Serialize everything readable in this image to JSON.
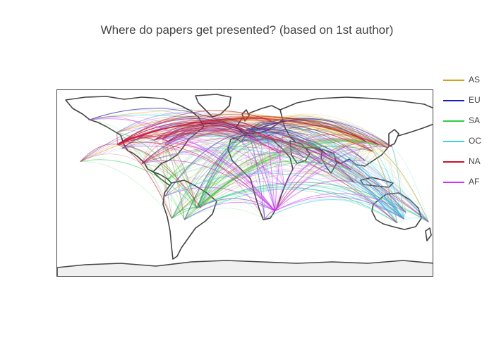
{
  "title": "Where do papers get presented? (based on 1st author)",
  "chart_data": {
    "type": "map",
    "projection": "equirectangular",
    "lon_range": [
      -180,
      180
    ],
    "lat_range": [
      -90,
      90
    ],
    "land_color": "#ffffff",
    "coastline_color": "#444444",
    "legend_placement": "right",
    "series": [
      {
        "name": "AS",
        "color": "#d4a017",
        "origins": [
          [
            116,
            40
          ],
          [
            139.7,
            35.7
          ],
          [
            121,
            31
          ],
          [
            127,
            37.5
          ],
          [
            77,
            28.6
          ],
          [
            103.8,
            1.3
          ]
        ]
      },
      {
        "name": "EU",
        "color": "#1f1fb0",
        "origins": [
          [
            2.3,
            48.9
          ],
          [
            -0.1,
            51.5
          ],
          [
            13.4,
            52.5
          ],
          [
            12.5,
            41.9
          ],
          [
            -3.7,
            40.4
          ],
          [
            4.9,
            52.4
          ]
        ]
      },
      {
        "name": "SA",
        "color": "#2ecc40",
        "origins": [
          [
            -46.6,
            -23.5
          ],
          [
            -58.4,
            -34.6
          ],
          [
            -70.6,
            -33.4
          ],
          [
            -74,
            4.6
          ]
        ]
      },
      {
        "name": "OC",
        "color": "#40d0e0",
        "origins": [
          [
            151.2,
            -33.9
          ],
          [
            144.9,
            -37.8
          ],
          [
            174.8,
            -36.8
          ]
        ]
      },
      {
        "name": "NA",
        "color": "#c8102e",
        "origins": [
          [
            -122.4,
            37.8
          ],
          [
            -74,
            40.7
          ],
          [
            -87.6,
            41.9
          ],
          [
            -79.4,
            43.7
          ],
          [
            -99.1,
            19.4
          ]
        ]
      },
      {
        "name": "AF",
        "color": "#cc33ff",
        "origins": [
          [
            28,
            -26.2
          ],
          [
            31.2,
            30
          ],
          [
            3.4,
            6.5
          ],
          [
            36.8,
            -1.3
          ]
        ]
      }
    ],
    "destinations": [
      [
        -122.4,
        37.8
      ],
      [
        -118.2,
        34
      ],
      [
        -73.9,
        40.7
      ],
      [
        -77,
        38.9
      ],
      [
        -87.6,
        41.9
      ],
      [
        -79.4,
        43.7
      ],
      [
        -123.1,
        49.3
      ],
      [
        -99.1,
        19.4
      ],
      [
        -0.1,
        51.5
      ],
      [
        2.3,
        48.9
      ],
      [
        13.4,
        52.5
      ],
      [
        -3.7,
        40.4
      ],
      [
        12.5,
        41.9
      ],
      [
        18,
        59.3
      ],
      [
        24.9,
        60.2
      ],
      [
        37.6,
        55.8
      ],
      [
        28.9,
        41
      ],
      [
        139.7,
        35.7
      ],
      [
        135.5,
        34.7
      ],
      [
        116,
        40
      ],
      [
        121.5,
        31.2
      ],
      [
        114.2,
        22.3
      ],
      [
        127,
        37.5
      ],
      [
        103.8,
        1.3
      ],
      [
        100.5,
        13.7
      ],
      [
        77.2,
        28.6
      ],
      [
        72.8,
        19
      ],
      [
        151.2,
        -33.9
      ],
      [
        144.9,
        -37.8
      ],
      [
        153,
        -27.5
      ],
      [
        174.8,
        -36.8
      ],
      [
        -46.6,
        -23.5
      ],
      [
        -43.2,
        -22.9
      ],
      [
        -58.4,
        -34.6
      ],
      [
        -70.6,
        -33.4
      ],
      [
        -77,
        -12
      ],
      [
        28,
        -26.2
      ],
      [
        18.4,
        -33.9
      ],
      [
        31.2,
        30
      ],
      [
        55.3,
        25.3
      ],
      [
        -157.9,
        21.3
      ],
      [
        -149.9,
        61.2
      ]
    ]
  }
}
